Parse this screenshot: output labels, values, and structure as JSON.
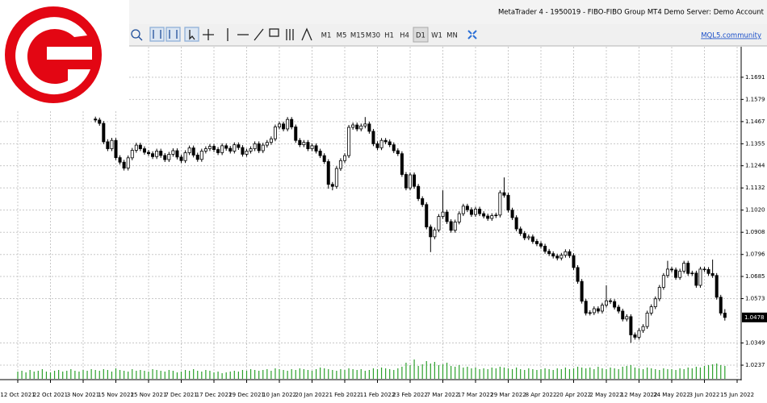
{
  "window": {
    "title": "MetaTrader 4 - 1950019 - FIBO-FIBO Group MT4 Demo Server: Demo Account"
  },
  "toolbar": {
    "timeframes": [
      "M1",
      "M5",
      "M15",
      "M30",
      "H1",
      "H4",
      "D1",
      "W1",
      "MN"
    ],
    "active": "D1",
    "community_link": "MQL5.community"
  },
  "chart_data": {
    "type": "candlestick",
    "categories": [
      "12 Oct 2021",
      null,
      null,
      null,
      null,
      null,
      null,
      null,
      "22 Oct 2021",
      null,
      null,
      null,
      null,
      null,
      null,
      null,
      "3 Nov 2021",
      null,
      null,
      null,
      null,
      null,
      null,
      null,
      "15 Nov 2021",
      null,
      null,
      null,
      null,
      null,
      null,
      null,
      "25 Nov 2021",
      null,
      null,
      null,
      null,
      null,
      null,
      null,
      "7 Dec 2021",
      null,
      null,
      null,
      null,
      null,
      null,
      null,
      "17 Dec 2021",
      null,
      null,
      null,
      null,
      null,
      null,
      null,
      "29 Dec 2021",
      null,
      null,
      null,
      null,
      null,
      null,
      null,
      "10 Jan 2022",
      null,
      null,
      null,
      null,
      null,
      null,
      null,
      "20 Jan 2022",
      null,
      null,
      null,
      null,
      null,
      null,
      null,
      "1 Feb 2022",
      null,
      null,
      null,
      null,
      null,
      null,
      null,
      "11 Feb 2022",
      null,
      null,
      null,
      null,
      null,
      null,
      null,
      "23 Feb 2022",
      null,
      null,
      null,
      null,
      null,
      null,
      null,
      "7 Mar 2022",
      null,
      null,
      null,
      null,
      null,
      null,
      null,
      "17 Mar 2022",
      null,
      null,
      null,
      null,
      null,
      null,
      null,
      "29 Mar 2022",
      null,
      null,
      null,
      null,
      null,
      null,
      null,
      "8 Apr 2022",
      null,
      null,
      null,
      null,
      null,
      null,
      null,
      "20 Apr 2022",
      null,
      null,
      null,
      null,
      null,
      null,
      null,
      "2 May 2022",
      null,
      null,
      null,
      null,
      null,
      null,
      null,
      "12 May 2022",
      null,
      null,
      null,
      null,
      null,
      null,
      null,
      "24 May 2022",
      null,
      null,
      null,
      null,
      null,
      null,
      null,
      "3 Jun 2022",
      null,
      null,
      null,
      null,
      null,
      null,
      null,
      "15 Jun 2022"
    ],
    "open": [
      null,
      null,
      null,
      null,
      null,
      null,
      null,
      null,
      null,
      null,
      null,
      null,
      null,
      null,
      null,
      null,
      null,
      null,
      null,
      1.148,
      1.1475,
      1.1458,
      1.1365,
      1.133,
      1.1372,
      1.1285,
      1.1262,
      1.1232,
      1.1284,
      1.1322,
      1.1348,
      1.133,
      1.1312,
      1.1305,
      1.129,
      1.1318,
      1.1296,
      1.1275,
      1.1302,
      1.132,
      1.1288,
      1.127,
      1.131,
      1.1334,
      1.1298,
      1.1276,
      1.1318,
      1.133,
      1.1342,
      1.1326,
      1.131,
      1.1345,
      1.1332,
      1.1318,
      1.135,
      1.1336,
      1.1302,
      1.1318,
      1.133,
      1.1355,
      1.132,
      1.1348,
      1.1362,
      1.138,
      1.144,
      1.1455,
      1.143,
      1.1478,
      1.144,
      1.1372,
      1.135,
      1.1362,
      1.133,
      1.1345,
      1.1318,
      1.1295,
      1.1265,
      1.115,
      1.114,
      1.123,
      1.127,
      1.1295,
      1.1438,
      1.145,
      1.143,
      1.1445,
      1.1455,
      1.1418,
      1.1355,
      1.1335,
      1.1372,
      1.1365,
      1.135,
      1.132,
      1.1305,
      1.12,
      1.1132,
      1.1198,
      1.114,
      1.1078,
      1.1048,
      1.0935,
      1.0885,
      1.092,
      1.0988,
      1.101,
      1.0962,
      1.0918,
      1.096,
      1.1002,
      1.104,
      1.1022,
      1.0998,
      1.1025,
      1.1002,
      1.099,
      1.0978,
      1.0992,
      1.0995,
      1.1108,
      1.1095,
      1.102,
      1.0982,
      1.0925,
      1.0902,
      1.088,
      1.0885,
      1.0862,
      1.085,
      1.0838,
      1.0812,
      1.08,
      1.0788,
      1.0778,
      1.0792,
      1.081,
      1.079,
      1.073,
      1.066,
      1.056,
      1.05,
      1.0502,
      1.0522,
      1.051,
      1.054,
      1.0562,
      1.0558,
      1.053,
      1.051,
      1.047,
      1.0482,
      1.039,
      1.0378,
      1.0412,
      1.0432,
      1.05,
      1.0532,
      1.0572,
      1.063,
      1.069,
      1.0722,
      1.0718,
      1.068,
      1.0712,
      1.0752,
      1.07,
      1.0702,
      1.064,
      1.0722,
      1.072,
      1.07,
      1.069,
      1.058,
      1.05,
      null,
      null,
      null
    ],
    "high": [
      null,
      null,
      null,
      null,
      null,
      null,
      null,
      null,
      null,
      null,
      null,
      null,
      null,
      null,
      null,
      null,
      null,
      null,
      null,
      1.1492,
      1.1487,
      1.147,
      1.1378,
      1.1385,
      1.1384,
      1.1297,
      1.1274,
      1.1296,
      1.1334,
      1.136,
      1.136,
      1.1342,
      1.1324,
      1.1317,
      1.133,
      1.133,
      1.1308,
      1.1314,
      1.1332,
      1.1332,
      1.13,
      1.1322,
      1.1346,
      1.1346,
      1.131,
      1.133,
      1.1342,
      1.1354,
      1.1354,
      1.1338,
      1.1357,
      1.1357,
      1.1344,
      1.1362,
      1.1362,
      1.1348,
      1.133,
      1.1342,
      1.1367,
      1.1367,
      1.136,
      1.1374,
      1.1392,
      1.1452,
      1.1467,
      1.1467,
      1.149,
      1.149,
      1.1452,
      1.1384,
      1.1374,
      1.1374,
      1.1357,
      1.1357,
      1.133,
      1.1307,
      1.1277,
      1.1162,
      1.1242,
      1.1282,
      1.1307,
      1.145,
      1.1462,
      1.1462,
      1.1457,
      1.149,
      1.1467,
      1.143,
      1.1367,
      1.1384,
      1.1384,
      1.1377,
      1.1362,
      1.1332,
      1.1317,
      1.1212,
      1.121,
      1.121,
      1.1152,
      1.109,
      1.106,
      1.0947,
      1.0932,
      1.1,
      1.112,
      1.1022,
      1.0974,
      1.0972,
      1.1014,
      1.1052,
      1.1052,
      1.1034,
      1.1037,
      1.1037,
      1.1014,
      1.1002,
      1.1004,
      1.1007,
      1.112,
      1.1185,
      1.1107,
      1.1032,
      1.0994,
      1.0937,
      1.0914,
      1.0897,
      1.0897,
      1.0874,
      1.0862,
      1.085,
      1.0824,
      1.0812,
      1.08,
      1.0804,
      1.0822,
      1.0822,
      1.0802,
      1.0742,
      1.0672,
      1.0572,
      1.0514,
      1.0534,
      1.0534,
      1.0552,
      1.064,
      1.0574,
      1.057,
      1.0542,
      1.0522,
      1.0494,
      1.0494,
      1.0402,
      1.0424,
      1.0444,
      1.0512,
      1.0544,
      1.0584,
      1.0642,
      1.0702,
      1.0764,
      1.0734,
      1.073,
      1.0724,
      1.0764,
      1.0764,
      1.0714,
      1.0714,
      1.0734,
      1.0734,
      1.0732,
      1.077,
      1.0702,
      1.0592,
      1.052,
      null,
      null,
      null
    ],
    "low": [
      null,
      null,
      null,
      null,
      null,
      null,
      null,
      null,
      null,
      null,
      null,
      null,
      null,
      null,
      null,
      null,
      null,
      null,
      null,
      1.1463,
      1.1446,
      1.1353,
      1.1318,
      1.1318,
      1.1273,
      1.125,
      1.122,
      1.122,
      1.1272,
      1.131,
      1.1318,
      1.13,
      1.1293,
      1.1278,
      1.1278,
      1.1284,
      1.1263,
      1.1263,
      1.129,
      1.1276,
      1.1258,
      1.1258,
      1.1298,
      1.1286,
      1.1264,
      1.1264,
      1.1306,
      1.1318,
      1.1314,
      1.1298,
      1.1298,
      1.132,
      1.1306,
      1.1306,
      1.1324,
      1.129,
      1.129,
      1.1306,
      1.1318,
      1.1308,
      1.1308,
      1.1336,
      1.135,
      1.1368,
      1.1428,
      1.1418,
      1.1418,
      1.1428,
      1.136,
      1.1338,
      1.1338,
      1.1318,
      1.1318,
      1.1306,
      1.1283,
      1.1253,
      1.1128,
      1.112,
      1.1128,
      1.1218,
      1.1258,
      1.1283,
      1.1426,
      1.1418,
      1.1418,
      1.1433,
      1.1406,
      1.1343,
      1.1323,
      1.1323,
      1.1353,
      1.1338,
      1.1308,
      1.1293,
      1.1188,
      1.112,
      1.112,
      1.1128,
      1.1066,
      1.1036,
      1.0923,
      1.0808,
      1.0873,
      1.0908,
      1.0976,
      1.095,
      1.0906,
      1.0906,
      1.0948,
      1.099,
      1.101,
      1.0986,
      1.0986,
      1.099,
      1.0978,
      1.0966,
      1.0966,
      1.098,
      1.0983,
      1.1083,
      1.1008,
      1.097,
      1.0913,
      1.089,
      1.0868,
      1.0868,
      1.085,
      1.0838,
      1.0826,
      1.08,
      1.0788,
      1.0776,
      1.0766,
      1.0766,
      1.078,
      1.0778,
      1.0718,
      1.0648,
      1.0548,
      1.0488,
      1.0488,
      1.049,
      1.0498,
      1.0498,
      1.0528,
      1.0546,
      1.0518,
      1.0498,
      1.0458,
      1.0458,
      1.035,
      1.0366,
      1.0366,
      1.04,
      1.042,
      1.0488,
      1.052,
      1.056,
      1.0618,
      1.0678,
      1.0706,
      1.0668,
      1.0668,
      1.07,
      1.0688,
      1.0688,
      1.0628,
      1.0628,
      1.0708,
      1.0688,
      1.0678,
      1.0568,
      1.0488,
      1.0462,
      null,
      null,
      null
    ],
    "close": [
      null,
      null,
      null,
      null,
      null,
      null,
      null,
      null,
      null,
      null,
      null,
      null,
      null,
      null,
      null,
      null,
      null,
      null,
      null,
      1.1475,
      1.1458,
      1.1365,
      1.133,
      1.1372,
      1.1285,
      1.1262,
      1.1232,
      1.1284,
      1.1322,
      1.1348,
      1.133,
      1.1312,
      1.1305,
      1.129,
      1.1318,
      1.1296,
      1.1275,
      1.1302,
      1.132,
      1.1288,
      1.127,
      1.131,
      1.1334,
      1.1298,
      1.1276,
      1.1318,
      1.133,
      1.1342,
      1.1326,
      1.131,
      1.1345,
      1.1332,
      1.1318,
      1.135,
      1.1336,
      1.1302,
      1.1318,
      1.133,
      1.1355,
      1.132,
      1.1348,
      1.1362,
      1.138,
      1.144,
      1.1455,
      1.143,
      1.1478,
      1.144,
      1.1372,
      1.135,
      1.1362,
      1.133,
      1.1345,
      1.1318,
      1.1295,
      1.1265,
      1.115,
      1.114,
      1.123,
      1.127,
      1.1295,
      1.1438,
      1.145,
      1.143,
      1.1445,
      1.1455,
      1.1418,
      1.1355,
      1.1335,
      1.1372,
      1.1365,
      1.135,
      1.132,
      1.1305,
      1.12,
      1.1132,
      1.1198,
      1.114,
      1.1078,
      1.1048,
      1.0935,
      1.0885,
      1.092,
      1.0988,
      1.101,
      1.0962,
      1.0918,
      1.096,
      1.1002,
      1.104,
      1.1022,
      1.0998,
      1.1025,
      1.1002,
      1.099,
      1.0978,
      1.0992,
      1.0995,
      1.1108,
      1.1095,
      1.102,
      1.0982,
      1.0925,
      1.0902,
      1.088,
      1.0885,
      1.0862,
      1.085,
      1.0838,
      1.0812,
      1.08,
      1.0788,
      1.0778,
      1.0792,
      1.081,
      1.079,
      1.073,
      1.066,
      1.056,
      1.05,
      1.0502,
      1.0522,
      1.051,
      1.054,
      1.0562,
      1.0558,
      1.053,
      1.051,
      1.047,
      1.0482,
      1.039,
      1.0378,
      1.0412,
      1.0432,
      1.05,
      1.0532,
      1.0572,
      1.063,
      1.069,
      1.0722,
      1.0718,
      1.068,
      1.0712,
      1.0752,
      1.07,
      1.0702,
      1.064,
      1.0722,
      1.072,
      1.07,
      1.069,
      1.058,
      1.05,
      1.0478,
      null,
      null,
      null
    ],
    "volume": [
      9,
      10,
      8,
      11,
      9,
      10,
      12,
      9,
      8,
      10,
      11,
      9,
      10,
      12,
      10,
      9,
      11,
      10,
      12,
      11,
      10,
      12,
      11,
      9,
      13,
      11,
      10,
      9,
      12,
      10,
      11,
      10,
      9,
      12,
      11,
      10,
      9,
      11,
      10,
      8,
      9,
      11,
      10,
      12,
      10,
      9,
      11,
      10,
      8,
      9,
      7,
      8,
      9,
      10,
      9,
      11,
      10,
      12,
      11,
      10,
      11,
      12,
      10,
      13,
      12,
      11,
      10,
      12,
      11,
      13,
      12,
      11,
      10,
      12,
      14,
      13,
      12,
      11,
      10,
      12,
      11,
      13,
      12,
      11,
      12,
      10,
      11,
      13,
      12,
      14,
      13,
      12,
      11,
      13,
      15,
      20,
      17,
      24,
      16,
      18,
      22,
      19,
      21,
      17,
      18,
      20,
      16,
      15,
      17,
      14,
      15,
      13,
      14,
      12,
      13,
      12,
      14,
      13,
      15,
      14,
      13,
      12,
      14,
      12,
      11,
      13,
      12,
      11,
      12,
      13,
      12,
      11,
      13,
      12,
      14,
      12,
      13,
      15,
      14,
      13,
      14,
      12,
      15,
      13,
      12,
      14,
      13,
      12,
      15,
      16,
      17,
      14,
      13,
      12,
      14,
      13,
      12,
      11,
      13,
      12,
      12,
      11,
      13,
      12,
      14,
      13,
      15,
      14,
      16,
      17,
      18,
      19,
      17,
      16,
      null,
      null,
      null
    ],
    "ylim": [
      1.0168,
      1.1845
    ],
    "yticks": [
      1.1691,
      1.1579,
      1.1467,
      1.1355,
      1.1244,
      1.1132,
      {
        "value": 1.102,
        "label": "1.1020"
      },
      1.0908,
      1.0796,
      1.0685,
      1.0573,
      1.0349,
      1.0237
    ],
    "current_price": 1.0478,
    "grid": true,
    "up_color": "#ffffff",
    "down_color": "#000000",
    "volume_color": "#2ca02c"
  }
}
